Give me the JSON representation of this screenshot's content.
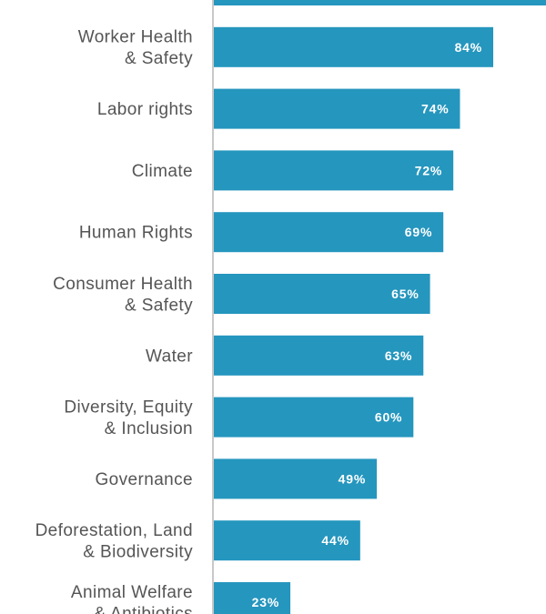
{
  "chart_data": {
    "type": "bar",
    "orientation": "horizontal",
    "bar_color": "#2596be",
    "axis_color": "#c8c8c8",
    "label_color": "#555555",
    "value_label_color": "#ffffff",
    "xlim": [
      0,
      100
    ],
    "categories": [
      {
        "lines": [
          ""
        ],
        "value": 100
      },
      {
        "lines": [
          "Worker Health",
          "& Safety"
        ],
        "value": 84,
        "label": "84%"
      },
      {
        "lines": [
          "Labor rights"
        ],
        "value": 74,
        "label": "74%"
      },
      {
        "lines": [
          "Climate"
        ],
        "value": 72,
        "label": "72%"
      },
      {
        "lines": [
          "Human Rights"
        ],
        "value": 69,
        "label": "69%"
      },
      {
        "lines": [
          "Consumer Health",
          "& Safety"
        ],
        "value": 65,
        "label": "65%"
      },
      {
        "lines": [
          "Water"
        ],
        "value": 63,
        "label": "63%"
      },
      {
        "lines": [
          "Diversity, Equity",
          "& Inclusion"
        ],
        "value": 60,
        "label": "60%"
      },
      {
        "lines": [
          "Governance"
        ],
        "value": 49,
        "label": "49%"
      },
      {
        "lines": [
          "Deforestation, Land",
          "& Biodiversity"
        ],
        "value": 44,
        "label": "44%"
      },
      {
        "lines": [
          "Animal Welfare",
          "& Antibiotics"
        ],
        "value": 23,
        "label": "23%"
      }
    ]
  }
}
